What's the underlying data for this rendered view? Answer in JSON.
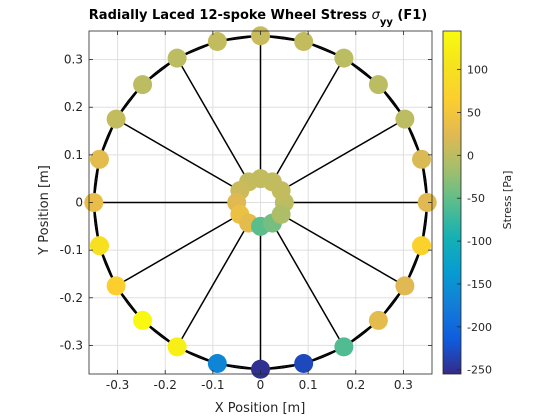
{
  "chart_data": {
    "type": "scatter",
    "title": "Radially Laced 12-spoke Wheel Stress σyy (F1)",
    "title_parts": {
      "main": "Radially Laced 12-spoke Wheel Stress ",
      "symbol": "σ",
      "subscript": "yy",
      "suffix": " (F1)"
    },
    "xlabel": "X Position [m]",
    "ylabel": "Y Position [m]",
    "xlim": [
      -0.36,
      0.36
    ],
    "ylim": [
      -0.36,
      0.36
    ],
    "xticks": [
      -0.3,
      -0.2,
      -0.1,
      0,
      0.1,
      0.2,
      0.3
    ],
    "xtick_labels": [
      "-0.3",
      "-0.2",
      "-0.1",
      "0",
      "0.1",
      "0.2",
      "0.3"
    ],
    "yticks": [
      -0.3,
      -0.2,
      -0.1,
      0,
      0.1,
      0.2,
      0.3
    ],
    "ytick_labels": [
      "-0.3",
      "-0.2",
      "-0.1",
      "0",
      "0.1",
      "0.2",
      "0.3"
    ],
    "grid": true,
    "colorbar": {
      "label": "Stress [Pa]",
      "colormap": "parula",
      "clim": [
        -255,
        145
      ],
      "ticks": [
        100,
        50,
        0,
        -50,
        -100,
        -150,
        -200,
        -250
      ],
      "tick_labels": [
        "100",
        "50",
        "0",
        "-50",
        "-100",
        "-150",
        "-200",
        "-250"
      ]
    },
    "rim": {
      "radius": 0.35,
      "points": [
        {
          "x": 0.35,
          "y": 0.0,
          "stress": 25
        },
        {
          "x": 0.338,
          "y": 0.0906,
          "stress": 20
        },
        {
          "x": 0.3031,
          "y": 0.175,
          "stress": 0
        },
        {
          "x": 0.2475,
          "y": 0.2475,
          "stress": 0
        },
        {
          "x": 0.175,
          "y": 0.3031,
          "stress": 0
        },
        {
          "x": 0.0906,
          "y": 0.338,
          "stress": 5
        },
        {
          "x": 0.0,
          "y": 0.35,
          "stress": 8
        },
        {
          "x": -0.0906,
          "y": 0.338,
          "stress": 5
        },
        {
          "x": -0.175,
          "y": 0.3031,
          "stress": 0
        },
        {
          "x": -0.2475,
          "y": 0.2475,
          "stress": 0
        },
        {
          "x": -0.3031,
          "y": 0.175,
          "stress": 5
        },
        {
          "x": -0.338,
          "y": 0.0906,
          "stress": 30
        },
        {
          "x": -0.35,
          "y": 0.0,
          "stress": 35
        },
        {
          "x": -0.338,
          "y": -0.0906,
          "stress": 100
        },
        {
          "x": -0.3031,
          "y": -0.175,
          "stress": 65
        },
        {
          "x": -0.2475,
          "y": -0.2475,
          "stress": 140
        },
        {
          "x": -0.175,
          "y": -0.3031,
          "stress": 125
        },
        {
          "x": -0.0906,
          "y": -0.338,
          "stress": -165
        },
        {
          "x": 0.0,
          "y": -0.35,
          "stress": -250
        },
        {
          "x": 0.0906,
          "y": -0.338,
          "stress": -230
        },
        {
          "x": 0.175,
          "y": -0.3031,
          "stress": -60
        },
        {
          "x": 0.2475,
          "y": -0.2475,
          "stress": 30
        },
        {
          "x": 0.3031,
          "y": -0.175,
          "stress": 25
        },
        {
          "x": 0.338,
          "y": -0.0906,
          "stress": 70
        }
      ]
    },
    "hub": {
      "radius": 0.05,
      "points": [
        {
          "x": 0.05,
          "y": 0.0,
          "stress": 0
        },
        {
          "x": 0.0433,
          "y": 0.025,
          "stress": 5
        },
        {
          "x": 0.025,
          "y": 0.0433,
          "stress": 5
        },
        {
          "x": 0.0,
          "y": 0.05,
          "stress": 5
        },
        {
          "x": -0.025,
          "y": 0.0433,
          "stress": 5
        },
        {
          "x": -0.0433,
          "y": 0.025,
          "stress": 10
        },
        {
          "x": -0.05,
          "y": 0.0,
          "stress": 25
        },
        {
          "x": -0.0433,
          "y": -0.025,
          "stress": 40
        },
        {
          "x": -0.025,
          "y": -0.0433,
          "stress": 30
        },
        {
          "x": 0.0,
          "y": -0.05,
          "stress": -55
        },
        {
          "x": 0.025,
          "y": -0.0433,
          "stress": -40
        },
        {
          "x": 0.0433,
          "y": -0.025,
          "stress": -10
        }
      ]
    },
    "spokes": [
      {
        "hub": [
          0.05,
          0.0
        ],
        "rim": [
          0.35,
          0.0
        ]
      },
      {
        "hub": [
          0.0433,
          0.025
        ],
        "rim": [
          0.3031,
          0.175
        ]
      },
      {
        "hub": [
          0.025,
          0.0433
        ],
        "rim": [
          0.175,
          0.3031
        ]
      },
      {
        "hub": [
          0.0,
          0.05
        ],
        "rim": [
          0.0,
          0.35
        ]
      },
      {
        "hub": [
          -0.025,
          0.0433
        ],
        "rim": [
          -0.175,
          0.3031
        ]
      },
      {
        "hub": [
          -0.0433,
          0.025
        ],
        "rim": [
          -0.3031,
          0.175
        ]
      },
      {
        "hub": [
          -0.05,
          0.0
        ],
        "rim": [
          -0.35,
          0.0
        ]
      },
      {
        "hub": [
          -0.0433,
          -0.025
        ],
        "rim": [
          -0.3031,
          -0.175
        ]
      },
      {
        "hub": [
          -0.025,
          -0.0433
        ],
        "rim": [
          -0.175,
          -0.3031
        ]
      },
      {
        "hub": [
          0.0,
          -0.05
        ],
        "rim": [
          0.0,
          -0.35
        ]
      },
      {
        "hub": [
          0.025,
          -0.0433
        ],
        "rim": [
          0.175,
          -0.3031
        ]
      },
      {
        "hub": [
          0.0433,
          -0.025
        ],
        "rim": [
          0.3031,
          -0.175
        ]
      }
    ]
  }
}
